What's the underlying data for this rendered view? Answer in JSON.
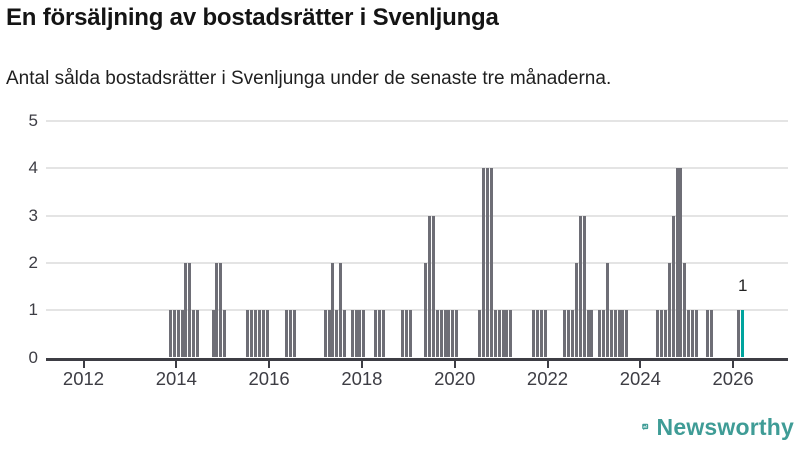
{
  "header": {
    "title": "En försäljning av bostadsrätter i Svenljunga",
    "subtitle": "Antal sålda bostadsrätter i Svenljunga under de senaste tre månaderna."
  },
  "footer": {
    "brand": "Newsworthy",
    "brand_color": "#3f9c96"
  },
  "chart_data": {
    "type": "bar",
    "title": "En försäljning av bostadsrätter i Svenljunga",
    "subtitle": "Antal sålda bostadsrätter i Svenljunga under de senaste tre månaderna.",
    "xlabel": "",
    "ylabel": "",
    "ylim": [
      0,
      5
    ],
    "yticks": [
      0,
      1,
      2,
      3,
      4,
      5
    ],
    "xticks": [
      2012,
      2014,
      2016,
      2018,
      2020,
      2022,
      2024,
      2026
    ],
    "grid": "horizontal",
    "legend": "none",
    "bar_color": "#6e6e76",
    "highlight_color": "#00a49e",
    "points": [
      {
        "m": "2013-11",
        "v": 1
      },
      {
        "m": "2013-12",
        "v": 1
      },
      {
        "m": "2014-01",
        "v": 1
      },
      {
        "m": "2014-02",
        "v": 1
      },
      {
        "m": "2014-03",
        "v": 2
      },
      {
        "m": "2014-04",
        "v": 2
      },
      {
        "m": "2014-05",
        "v": 1
      },
      {
        "m": "2014-06",
        "v": 1
      },
      {
        "m": "2014-10",
        "v": 1
      },
      {
        "m": "2014-11",
        "v": 2
      },
      {
        "m": "2014-12",
        "v": 2
      },
      {
        "m": "2015-01",
        "v": 1
      },
      {
        "m": "2015-07",
        "v": 1
      },
      {
        "m": "2015-08",
        "v": 1
      },
      {
        "m": "2015-09",
        "v": 1
      },
      {
        "m": "2015-10",
        "v": 1
      },
      {
        "m": "2015-11",
        "v": 1
      },
      {
        "m": "2015-12",
        "v": 1
      },
      {
        "m": "2016-05",
        "v": 1
      },
      {
        "m": "2016-06",
        "v": 1
      },
      {
        "m": "2016-07",
        "v": 1
      },
      {
        "m": "2017-03",
        "v": 1
      },
      {
        "m": "2017-04",
        "v": 1
      },
      {
        "m": "2017-05",
        "v": 2
      },
      {
        "m": "2017-06",
        "v": 1
      },
      {
        "m": "2017-07",
        "v": 2
      },
      {
        "m": "2017-08",
        "v": 1
      },
      {
        "m": "2017-10",
        "v": 1
      },
      {
        "m": "2017-11",
        "v": 1
      },
      {
        "m": "2017-12",
        "v": 1
      },
      {
        "m": "2018-01",
        "v": 1
      },
      {
        "m": "2018-04",
        "v": 1
      },
      {
        "m": "2018-05",
        "v": 1
      },
      {
        "m": "2018-06",
        "v": 1
      },
      {
        "m": "2018-11",
        "v": 1
      },
      {
        "m": "2018-12",
        "v": 1
      },
      {
        "m": "2019-01",
        "v": 1
      },
      {
        "m": "2019-05",
        "v": 2
      },
      {
        "m": "2019-06",
        "v": 3
      },
      {
        "m": "2019-07",
        "v": 3
      },
      {
        "m": "2019-08",
        "v": 1
      },
      {
        "m": "2019-09",
        "v": 1
      },
      {
        "m": "2019-10",
        "v": 1
      },
      {
        "m": "2019-11",
        "v": 1
      },
      {
        "m": "2019-12",
        "v": 1
      },
      {
        "m": "2020-01",
        "v": 1
      },
      {
        "m": "2020-07",
        "v": 1
      },
      {
        "m": "2020-08",
        "v": 4
      },
      {
        "m": "2020-09",
        "v": 4
      },
      {
        "m": "2020-10",
        "v": 4
      },
      {
        "m": "2020-11",
        "v": 1
      },
      {
        "m": "2020-12",
        "v": 1
      },
      {
        "m": "2021-01",
        "v": 1
      },
      {
        "m": "2021-02",
        "v": 1
      },
      {
        "m": "2021-03",
        "v": 1
      },
      {
        "m": "2021-09",
        "v": 1
      },
      {
        "m": "2021-10",
        "v": 1
      },
      {
        "m": "2021-11",
        "v": 1
      },
      {
        "m": "2021-12",
        "v": 1
      },
      {
        "m": "2022-05",
        "v": 1
      },
      {
        "m": "2022-06",
        "v": 1
      },
      {
        "m": "2022-07",
        "v": 1
      },
      {
        "m": "2022-08",
        "v": 2
      },
      {
        "m": "2022-09",
        "v": 3
      },
      {
        "m": "2022-10",
        "v": 3
      },
      {
        "m": "2022-11",
        "v": 1
      },
      {
        "m": "2022-12",
        "v": 1
      },
      {
        "m": "2023-02",
        "v": 1
      },
      {
        "m": "2023-03",
        "v": 1
      },
      {
        "m": "2023-04",
        "v": 2
      },
      {
        "m": "2023-05",
        "v": 1
      },
      {
        "m": "2023-06",
        "v": 1
      },
      {
        "m": "2023-07",
        "v": 1
      },
      {
        "m": "2023-08",
        "v": 1
      },
      {
        "m": "2023-09",
        "v": 1
      },
      {
        "m": "2024-05",
        "v": 1
      },
      {
        "m": "2024-06",
        "v": 1
      },
      {
        "m": "2024-07",
        "v": 1
      },
      {
        "m": "2024-08",
        "v": 2
      },
      {
        "m": "2024-09",
        "v": 3
      },
      {
        "m": "2024-10",
        "v": 4
      },
      {
        "m": "2024-11",
        "v": 4
      },
      {
        "m": "2024-12",
        "v": 2
      },
      {
        "m": "2025-01",
        "v": 1
      },
      {
        "m": "2025-02",
        "v": 1
      },
      {
        "m": "2025-03",
        "v": 1
      },
      {
        "m": "2025-06",
        "v": 1
      },
      {
        "m": "2025-07",
        "v": 1
      },
      {
        "m": "2026-02",
        "v": 1
      }
    ],
    "highlight_point": {
      "m": "2026-03",
      "v": 1,
      "label": "1"
    }
  }
}
